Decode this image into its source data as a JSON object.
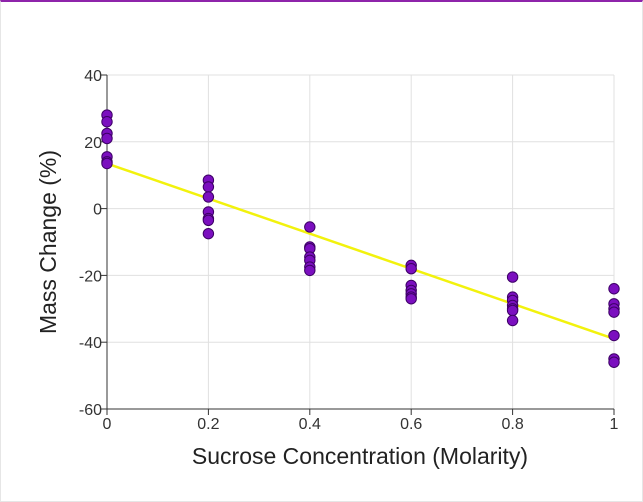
{
  "chart_data": {
    "type": "scatter",
    "title": "",
    "xlabel": "Sucrose Concentration (Molarity)",
    "ylabel": "Mass Change (%)",
    "xlim": [
      0,
      1
    ],
    "ylim": [
      -60,
      40
    ],
    "x_ticks": [
      0,
      0.2,
      0.4,
      0.6,
      0.8,
      1
    ],
    "x_tick_labels": [
      "0",
      "0.2",
      "0.4",
      "0.6",
      "0.8",
      "1"
    ],
    "y_ticks": [
      -60,
      -40,
      -20,
      0,
      20,
      40
    ],
    "y_tick_labels": [
      "-60",
      "-40",
      "-20",
      "0",
      "20",
      "40"
    ],
    "grid": true,
    "legend": "none",
    "colors": {
      "point_fill": "#7b0fbf",
      "point_stroke": "#3d0066",
      "trendline": "#f2f20d",
      "grid": "#e0e0e0",
      "axis": "#333333"
    },
    "series": [
      {
        "x": [
          0,
          0,
          0,
          0,
          0,
          0,
          0,
          0.2,
          0.2,
          0.2,
          0.2,
          0.2,
          0.2,
          0.2,
          0.4,
          0.4,
          0.4,
          0.4,
          0.4,
          0.4,
          0.4,
          0.6,
          0.6,
          0.6,
          0.6,
          0.6,
          0.6,
          0.6,
          0.8,
          0.8,
          0.8,
          0.8,
          0.8,
          0.8,
          0.8,
          1,
          1,
          1,
          1,
          1,
          1,
          1
        ],
        "y": [
          28,
          26,
          22.5,
          21,
          15.5,
          14,
          13.5,
          8.5,
          6.5,
          3.5,
          -1,
          -3,
          -3.5,
          -7.5,
          -5.5,
          -11.5,
          -12,
          -14.5,
          -15.5,
          -17.5,
          -18.5,
          -17,
          -18,
          -23,
          -24.5,
          -25.5,
          -26.5,
          -27,
          -20.5,
          -26.5,
          -27.5,
          -29,
          -30,
          -30.5,
          -33.5,
          -24,
          -28.5,
          -30,
          -31,
          -38,
          -45,
          -46
        ]
      }
    ],
    "trendline": {
      "x": [
        0,
        1
      ],
      "y": [
        13.5,
        -39
      ]
    }
  }
}
